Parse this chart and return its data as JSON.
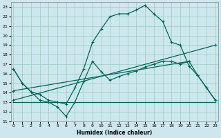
{
  "xlabel": "Humidex (Indice chaleur)",
  "bg_color": "#cce8ee",
  "grid_color": "#99ccbb",
  "line_color": "#006655",
  "xlim": [
    -0.3,
    23.3
  ],
  "ylim": [
    11,
    23.5
  ],
  "yticks": [
    11,
    12,
    13,
    14,
    15,
    16,
    17,
    18,
    19,
    20,
    21,
    22,
    23
  ],
  "xticks": [
    0,
    1,
    2,
    3,
    4,
    5,
    6,
    7,
    8,
    9,
    10,
    11,
    12,
    13,
    14,
    15,
    16,
    17,
    18,
    19,
    20,
    21,
    22,
    23
  ],
  "curve1": {
    "x": [
      0,
      1,
      2,
      3,
      4,
      5,
      6,
      7,
      8,
      9,
      10,
      11,
      12,
      13,
      14,
      15,
      16,
      17,
      18,
      19,
      20,
      21,
      22,
      23
    ],
    "y": [
      16.5,
      15.0,
      14.1,
      13.8,
      13.2,
      13.0,
      12.8,
      14.5,
      16.5,
      19.3,
      20.7,
      22.0,
      22.3,
      22.3,
      22.7,
      23.2,
      22.3,
      21.5,
      19.3,
      19.0,
      16.8,
      15.8,
      14.5,
      13.2
    ]
  },
  "curve2": {
    "x": [
      0,
      23
    ],
    "y": [
      13.2,
      19.0
    ]
  },
  "curve3": {
    "x": [
      0,
      20
    ],
    "y": [
      14.2,
      17.3
    ]
  },
  "curve4": {
    "x": [
      0,
      23
    ],
    "y": [
      13.0,
      13.0
    ]
  },
  "curve5": {
    "x": [
      0,
      1,
      2,
      3,
      4,
      5,
      6,
      7,
      8,
      9,
      10,
      11,
      12,
      13,
      14,
      15,
      16,
      17,
      18,
      19,
      20,
      21,
      22,
      23
    ],
    "y": [
      16.5,
      15.0,
      14.1,
      13.2,
      13.0,
      12.5,
      11.5,
      13.0,
      15.2,
      17.3,
      16.2,
      15.3,
      15.7,
      16.0,
      16.3,
      16.7,
      17.0,
      17.3,
      17.3,
      17.0,
      17.3,
      15.8,
      14.5,
      13.2
    ]
  }
}
